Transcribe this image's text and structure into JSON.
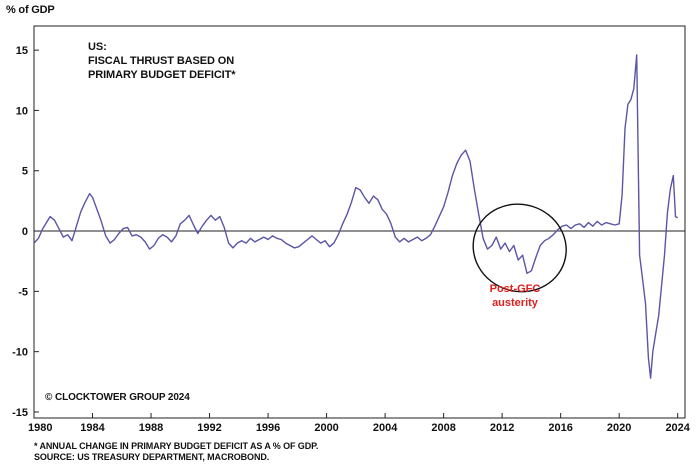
{
  "chart_data": {
    "type": "line",
    "ylabel": "% of GDP",
    "title_lines": [
      "US:",
      "FISCAL THRUST BASED ON",
      "PRIMARY BUDGET DEFICIT*"
    ],
    "xlim": [
      1980,
      2024.5
    ],
    "ylim": [
      -15.5,
      17
    ],
    "x_ticks": [
      1980,
      1984,
      1988,
      1992,
      1996,
      2000,
      2004,
      2008,
      2012,
      2016,
      2020,
      2024
    ],
    "y_ticks": [
      15,
      10,
      5,
      0,
      -5,
      -10,
      -15
    ],
    "line_color": "#5b55a6",
    "annotation": {
      "lines": [
        "Post-GFC",
        "austerity"
      ],
      "color": "#e02020",
      "ellipse_center": [
        2013.2,
        -1.4
      ],
      "ellipse_radii": [
        3.2,
        3.6
      ]
    },
    "copyright": "© CLOCKTOWER GROUP 2024",
    "footnotes": [
      "* ANNUAL CHANGE IN PRIMARY BUDGET DEFICIT AS A % OF GDP.",
      "SOURCE: US TREASURY DEPARTMENT, MACROBOND."
    ],
    "series": [
      {
        "name": "Fiscal thrust",
        "points": [
          [
            1980.0,
            -1.0
          ],
          [
            1980.3,
            -0.6
          ],
          [
            1980.6,
            0.2
          ],
          [
            1980.9,
            0.8
          ],
          [
            1981.1,
            1.2
          ],
          [
            1981.4,
            0.9
          ],
          [
            1981.7,
            0.2
          ],
          [
            1982.0,
            -0.5
          ],
          [
            1982.3,
            -0.3
          ],
          [
            1982.6,
            -0.8
          ],
          [
            1982.9,
            0.4
          ],
          [
            1983.2,
            1.6
          ],
          [
            1983.5,
            2.4
          ],
          [
            1983.8,
            3.1
          ],
          [
            1984.0,
            2.8
          ],
          [
            1984.3,
            1.8
          ],
          [
            1984.6,
            0.8
          ],
          [
            1984.9,
            -0.4
          ],
          [
            1985.2,
            -1.0
          ],
          [
            1985.5,
            -0.7
          ],
          [
            1985.8,
            -0.2
          ],
          [
            1986.1,
            0.2
          ],
          [
            1986.4,
            0.3
          ],
          [
            1986.7,
            -0.4
          ],
          [
            1987.0,
            -0.3
          ],
          [
            1987.3,
            -0.5
          ],
          [
            1987.6,
            -0.9
          ],
          [
            1987.9,
            -1.5
          ],
          [
            1988.2,
            -1.2
          ],
          [
            1988.5,
            -0.6
          ],
          [
            1988.8,
            -0.3
          ],
          [
            1989.1,
            -0.5
          ],
          [
            1989.4,
            -0.9
          ],
          [
            1989.7,
            -0.4
          ],
          [
            1990.0,
            0.6
          ],
          [
            1990.3,
            0.9
          ],
          [
            1990.6,
            1.3
          ],
          [
            1990.9,
            0.5
          ],
          [
            1991.2,
            -0.2
          ],
          [
            1991.5,
            0.4
          ],
          [
            1991.8,
            0.9
          ],
          [
            1992.1,
            1.3
          ],
          [
            1992.4,
            0.9
          ],
          [
            1992.7,
            1.2
          ],
          [
            1993.0,
            0.3
          ],
          [
            1993.3,
            -1.0
          ],
          [
            1993.6,
            -1.4
          ],
          [
            1993.9,
            -1.0
          ],
          [
            1994.2,
            -0.8
          ],
          [
            1994.5,
            -1.0
          ],
          [
            1994.8,
            -0.6
          ],
          [
            1995.1,
            -0.9
          ],
          [
            1995.4,
            -0.7
          ],
          [
            1995.7,
            -0.5
          ],
          [
            1996.0,
            -0.7
          ],
          [
            1996.3,
            -0.4
          ],
          [
            1996.6,
            -0.6
          ],
          [
            1996.9,
            -0.7
          ],
          [
            1997.2,
            -1.0
          ],
          [
            1997.5,
            -1.2
          ],
          [
            1997.8,
            -1.4
          ],
          [
            1998.1,
            -1.3
          ],
          [
            1998.4,
            -1.0
          ],
          [
            1998.7,
            -0.7
          ],
          [
            1999.0,
            -0.4
          ],
          [
            1999.3,
            -0.7
          ],
          [
            1999.6,
            -1.0
          ],
          [
            1999.9,
            -0.8
          ],
          [
            2000.2,
            -1.3
          ],
          [
            2000.5,
            -1.0
          ],
          [
            2000.8,
            -0.3
          ],
          [
            2001.1,
            0.6
          ],
          [
            2001.4,
            1.4
          ],
          [
            2001.7,
            2.4
          ],
          [
            2002.0,
            3.6
          ],
          [
            2002.3,
            3.4
          ],
          [
            2002.6,
            2.8
          ],
          [
            2002.9,
            2.3
          ],
          [
            2003.2,
            2.9
          ],
          [
            2003.5,
            2.6
          ],
          [
            2003.8,
            1.8
          ],
          [
            2004.1,
            1.4
          ],
          [
            2004.4,
            0.6
          ],
          [
            2004.7,
            -0.5
          ],
          [
            2005.0,
            -0.9
          ],
          [
            2005.3,
            -0.6
          ],
          [
            2005.6,
            -0.9
          ],
          [
            2005.9,
            -0.7
          ],
          [
            2006.2,
            -0.5
          ],
          [
            2006.5,
            -0.8
          ],
          [
            2006.8,
            -0.6
          ],
          [
            2007.1,
            -0.3
          ],
          [
            2007.4,
            0.4
          ],
          [
            2007.7,
            1.2
          ],
          [
            2008.0,
            2.0
          ],
          [
            2008.3,
            3.2
          ],
          [
            2008.6,
            4.6
          ],
          [
            2008.9,
            5.6
          ],
          [
            2009.2,
            6.3
          ],
          [
            2009.5,
            6.7
          ],
          [
            2009.8,
            5.8
          ],
          [
            2010.1,
            3.5
          ],
          [
            2010.4,
            1.4
          ],
          [
            2010.7,
            -0.6
          ],
          [
            2011.0,
            -1.5
          ],
          [
            2011.3,
            -1.2
          ],
          [
            2011.6,
            -0.5
          ],
          [
            2011.9,
            -1.5
          ],
          [
            2012.2,
            -1.0
          ],
          [
            2012.5,
            -1.7
          ],
          [
            2012.8,
            -1.2
          ],
          [
            2013.1,
            -2.4
          ],
          [
            2013.4,
            -2.0
          ],
          [
            2013.7,
            -3.5
          ],
          [
            2014.0,
            -3.3
          ],
          [
            2014.3,
            -2.2
          ],
          [
            2014.6,
            -1.2
          ],
          [
            2014.9,
            -0.8
          ],
          [
            2015.2,
            -0.6
          ],
          [
            2015.5,
            -0.3
          ],
          [
            2015.8,
            0.1
          ],
          [
            2016.1,
            0.4
          ],
          [
            2016.4,
            0.5
          ],
          [
            2016.7,
            0.2
          ],
          [
            2017.0,
            0.5
          ],
          [
            2017.3,
            0.6
          ],
          [
            2017.6,
            0.3
          ],
          [
            2017.9,
            0.7
          ],
          [
            2018.2,
            0.4
          ],
          [
            2018.5,
            0.8
          ],
          [
            2018.8,
            0.5
          ],
          [
            2019.1,
            0.7
          ],
          [
            2019.4,
            0.6
          ],
          [
            2019.7,
            0.5
          ],
          [
            2020.0,
            0.6
          ],
          [
            2020.2,
            3.0
          ],
          [
            2020.4,
            8.5
          ],
          [
            2020.6,
            10.5
          ],
          [
            2020.8,
            10.9
          ],
          [
            2021.0,
            11.8
          ],
          [
            2021.2,
            14.6
          ],
          [
            2021.3,
            6.0
          ],
          [
            2021.4,
            -2.0
          ],
          [
            2021.6,
            -4.0
          ],
          [
            2021.8,
            -6.0
          ],
          [
            2022.0,
            -10.5
          ],
          [
            2022.15,
            -12.2
          ],
          [
            2022.3,
            -10.0
          ],
          [
            2022.5,
            -8.5
          ],
          [
            2022.7,
            -7.0
          ],
          [
            2022.9,
            -4.5
          ],
          [
            2023.1,
            -2.0
          ],
          [
            2023.3,
            1.5
          ],
          [
            2023.5,
            3.5
          ],
          [
            2023.7,
            4.6
          ],
          [
            2023.85,
            1.2
          ],
          [
            2024.0,
            1.1
          ]
        ]
      }
    ]
  }
}
